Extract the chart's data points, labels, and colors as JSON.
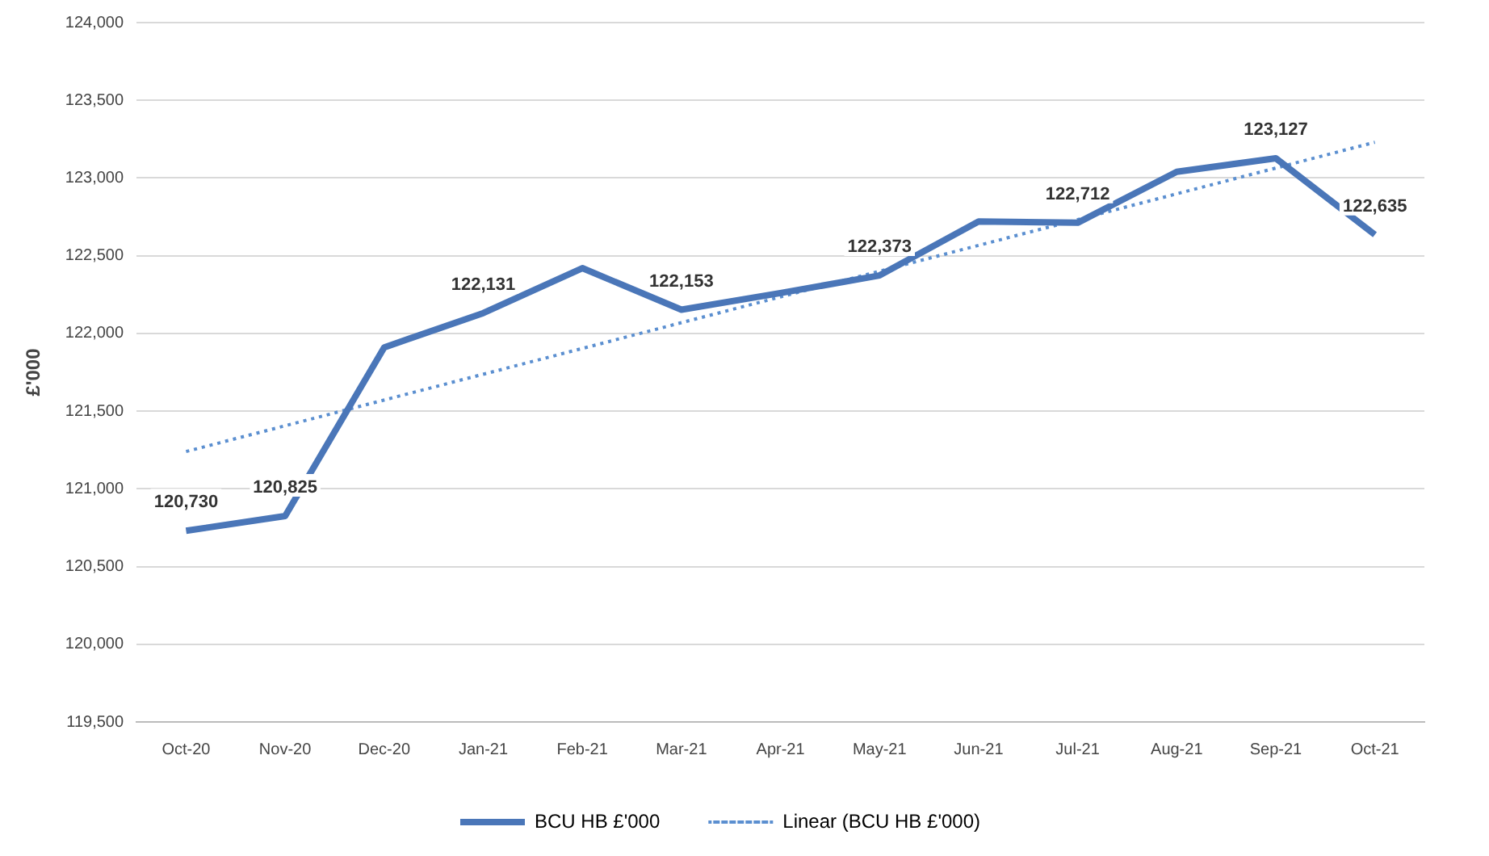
{
  "chart_data": {
    "type": "line",
    "ylabel": "£'000",
    "categories": [
      "Oct-20",
      "Nov-20",
      "Dec-20",
      "Jan-21",
      "Feb-21",
      "Mar-21",
      "Apr-21",
      "May-21",
      "Jun-21",
      "Jul-21",
      "Aug-21",
      "Sep-21",
      "Oct-21"
    ],
    "series": [
      {
        "name": "BCU HB £'000",
        "color": "#4a76b8",
        "line_style": "solid",
        "values": [
          120730,
          120825,
          121910,
          122131,
          122420,
          122153,
          122260,
          122373,
          122720,
          122712,
          123040,
          123127,
          122635
        ],
        "value_labels": [
          "120,730",
          "120,825",
          null,
          "122,131",
          null,
          "122,153",
          null,
          "122,373",
          null,
          "122,712",
          null,
          "123,127",
          "122,635"
        ]
      },
      {
        "name": "Linear (BCU HB £'000)",
        "color": "#5b8fd0",
        "line_style": "dotted",
        "x": [
          "Oct-20",
          "Oct-21"
        ],
        "values": [
          121240,
          123230
        ]
      }
    ],
    "ylim": [
      119500,
      124000
    ],
    "yticks": [
      {
        "value": 119500,
        "label": "119,500"
      },
      {
        "value": 120000,
        "label": "120,000"
      },
      {
        "value": 120500,
        "label": "120,500"
      },
      {
        "value": 121000,
        "label": "121,000"
      },
      {
        "value": 121500,
        "label": "121,500"
      },
      {
        "value": 122000,
        "label": "122,000"
      },
      {
        "value": 122500,
        "label": "122,500"
      },
      {
        "value": 123000,
        "label": "123,000"
      },
      {
        "value": 123500,
        "label": "123,500"
      },
      {
        "value": 124000,
        "label": "124,000"
      }
    ],
    "grid": "y",
    "legend": "bottom",
    "marker": "none"
  }
}
